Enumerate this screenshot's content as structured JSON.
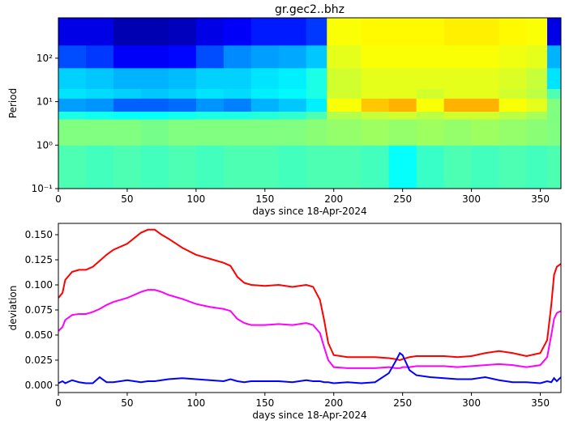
{
  "chart_data": [
    {
      "type": "heatmap",
      "title": "gr.gec2..bhz",
      "xlabel": "days since 18-Apr-2024",
      "ylabel": "Period",
      "log_y": true,
      "colormap": "jet",
      "zlim": [
        0,
        1
      ],
      "xlim": [
        0,
        365
      ],
      "xticks": [
        0,
        50,
        100,
        150,
        200,
        250,
        300,
        350
      ],
      "ylim": [
        0.1,
        850
      ],
      "yticks": [
        {
          "value": 0.1,
          "label": "10⁻¹"
        },
        {
          "value": 1,
          "label": "10⁰"
        },
        {
          "value": 10,
          "label": "10¹"
        },
        {
          "value": 100,
          "label": "10²"
        }
      ],
      "xbins": [
        0,
        20,
        40,
        60,
        80,
        100,
        120,
        140,
        160,
        180,
        195,
        220,
        240,
        260,
        280,
        300,
        320,
        340,
        355,
        365
      ],
      "ybins": [
        0.1,
        1,
        4,
        6,
        12,
        20,
        60,
        200,
        850
      ],
      "z": [
        [
          0.45,
          0.44,
          0.45,
          0.44,
          0.45,
          0.44,
          0.45,
          0.45,
          0.44,
          0.45,
          0.45,
          0.44,
          0.38,
          0.43,
          0.45,
          0.44,
          0.45,
          0.44,
          0.45
        ],
        [
          0.5,
          0.5,
          0.5,
          0.49,
          0.5,
          0.5,
          0.5,
          0.5,
          0.5,
          0.51,
          0.52,
          0.53,
          0.52,
          0.53,
          0.52,
          0.53,
          0.52,
          0.51,
          0.5
        ],
        [
          0.4,
          0.39,
          0.38,
          0.38,
          0.39,
          0.4,
          0.4,
          0.41,
          0.42,
          0.45,
          0.55,
          0.57,
          0.58,
          0.56,
          0.58,
          0.58,
          0.56,
          0.54,
          0.5
        ],
        [
          0.28,
          0.27,
          0.22,
          0.22,
          0.23,
          0.27,
          0.25,
          0.3,
          0.32,
          0.36,
          0.62,
          0.68,
          0.7,
          0.62,
          0.7,
          0.7,
          0.62,
          0.6,
          0.5
        ],
        [
          0.35,
          0.34,
          0.33,
          0.32,
          0.33,
          0.35,
          0.34,
          0.36,
          0.37,
          0.4,
          0.58,
          0.6,
          0.6,
          0.58,
          0.6,
          0.6,
          0.58,
          0.56,
          0.45
        ],
        [
          0.33,
          0.32,
          0.3,
          0.3,
          0.31,
          0.33,
          0.33,
          0.35,
          0.36,
          0.4,
          0.58,
          0.6,
          0.6,
          0.6,
          0.6,
          0.6,
          0.59,
          0.57,
          0.35
        ],
        [
          0.2,
          0.18,
          0.12,
          0.12,
          0.13,
          0.2,
          0.26,
          0.28,
          0.29,
          0.32,
          0.6,
          0.62,
          0.62,
          0.62,
          0.62,
          0.62,
          0.61,
          0.6,
          0.3
        ],
        [
          0.1,
          0.1,
          0.05,
          0.05,
          0.06,
          0.1,
          0.12,
          0.15,
          0.15,
          0.18,
          0.62,
          0.63,
          0.63,
          0.63,
          0.64,
          0.64,
          0.63,
          0.62,
          0.1
        ]
      ]
    },
    {
      "type": "line",
      "xlabel": "days since 18-Apr-2024",
      "ylabel": "deviation",
      "xlim": [
        0,
        365
      ],
      "xticks": [
        0,
        50,
        100,
        150,
        200,
        250,
        300,
        350
      ],
      "ylim": [
        -0.0073,
        0.1613
      ],
      "yticks": [
        {
          "value": 0,
          "label": "0.000"
        },
        {
          "value": 0.025,
          "label": "0.025"
        },
        {
          "value": 0.05,
          "label": "0.050"
        },
        {
          "value": 0.075,
          "label": "0.075"
        },
        {
          "value": 0.1,
          "label": "0.100"
        },
        {
          "value": 0.125,
          "label": "0.125"
        },
        {
          "value": 0.15,
          "label": "0.150"
        }
      ],
      "x": [
        0,
        3,
        5,
        10,
        15,
        20,
        25,
        30,
        35,
        40,
        50,
        60,
        65,
        70,
        75,
        80,
        90,
        100,
        110,
        120,
        125,
        130,
        135,
        140,
        150,
        160,
        170,
        180,
        185,
        190,
        193,
        196,
        200,
        210,
        220,
        230,
        240,
        245,
        248,
        250,
        255,
        260,
        270,
        280,
        290,
        300,
        310,
        320,
        330,
        340,
        350,
        355,
        358,
        360,
        362,
        365
      ],
      "series": [
        {
          "color": "#ff0000",
          "values": [
            0.087,
            0.092,
            0.105,
            0.113,
            0.115,
            0.115,
            0.118,
            0.124,
            0.13,
            0.135,
            0.141,
            0.152,
            0.155,
            0.155,
            0.15,
            0.146,
            0.137,
            0.13,
            0.126,
            0.122,
            0.119,
            0.108,
            0.102,
            0.1,
            0.099,
            0.1,
            0.098,
            0.1,
            0.098,
            0.085,
            0.065,
            0.042,
            0.03,
            0.028,
            0.028,
            0.028,
            0.027,
            0.026,
            0.025,
            0.026,
            0.028,
            0.029,
            0.029,
            0.029,
            0.028,
            0.029,
            0.032,
            0.034,
            0.032,
            0.029,
            0.032,
            0.045,
            0.08,
            0.11,
            0.118,
            0.121
          ]
        },
        {
          "color": "#ff00ff",
          "values": [
            0.054,
            0.058,
            0.065,
            0.07,
            0.071,
            0.071,
            0.073,
            0.076,
            0.08,
            0.083,
            0.087,
            0.093,
            0.095,
            0.095,
            0.093,
            0.09,
            0.086,
            0.081,
            0.078,
            0.076,
            0.074,
            0.066,
            0.062,
            0.06,
            0.06,
            0.061,
            0.06,
            0.062,
            0.06,
            0.052,
            0.038,
            0.025,
            0.018,
            0.017,
            0.017,
            0.017,
            0.018,
            0.017,
            0.017,
            0.018,
            0.018,
            0.019,
            0.019,
            0.019,
            0.018,
            0.019,
            0.02,
            0.021,
            0.02,
            0.018,
            0.02,
            0.028,
            0.05,
            0.066,
            0.072,
            0.074
          ]
        },
        {
          "color": "#0000ff",
          "values": [
            0.002,
            0.004,
            0.002,
            0.005,
            0.003,
            0.002,
            0.002,
            0.008,
            0.003,
            0.003,
            0.005,
            0.003,
            0.004,
            0.004,
            0.005,
            0.006,
            0.007,
            0.006,
            0.005,
            0.004,
            0.006,
            0.004,
            0.003,
            0.004,
            0.004,
            0.004,
            0.003,
            0.005,
            0.004,
            0.004,
            0.003,
            0.003,
            0.002,
            0.003,
            0.002,
            0.003,
            0.012,
            0.024,
            0.032,
            0.03,
            0.015,
            0.01,
            0.008,
            0.007,
            0.006,
            0.006,
            0.008,
            0.005,
            0.003,
            0.003,
            0.002,
            0.004,
            0.003,
            0.007,
            0.004,
            0.008
          ]
        }
      ]
    }
  ]
}
